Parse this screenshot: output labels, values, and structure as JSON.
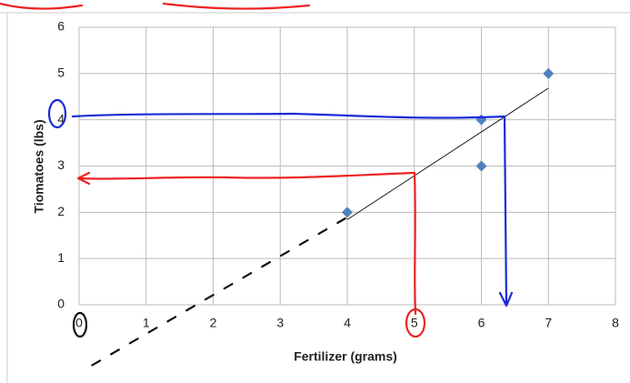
{
  "chart_data": {
    "type": "scatter",
    "x_label": "Fertilizer (grams)",
    "y_label": "Tiomatoes (lbs)",
    "series": [
      {
        "color": "#4f81bd",
        "x": [
          4,
          6,
          6,
          7
        ],
        "values": [
          2,
          4,
          3,
          5
        ]
      }
    ],
    "xlim": [
      0,
      8
    ],
    "xticks": [
      0,
      1,
      2,
      3,
      4,
      5,
      6,
      7,
      8
    ],
    "ylim": [
      0,
      6
    ],
    "yticks": [
      0,
      1,
      2,
      3,
      4,
      5,
      6
    ],
    "grid": true,
    "trendline": true
  }
}
